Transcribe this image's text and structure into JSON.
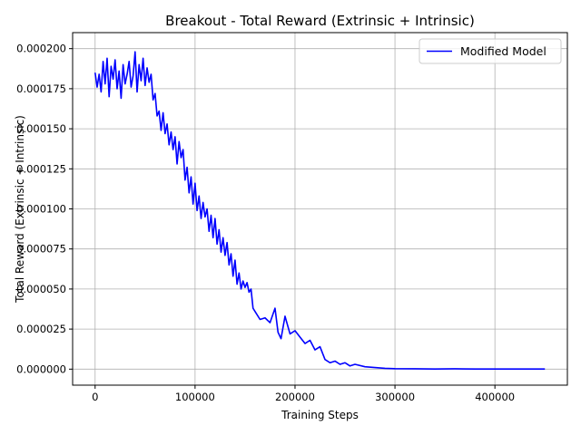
{
  "chart_data": {
    "type": "line",
    "title": "Breakout - Total Reward (Extrinsic + Intrinsic)",
    "xlabel": "Training Steps",
    "ylabel": "Total Reward (Extrinsic + Intrinsic)",
    "xlim": [
      -22500,
      472500
    ],
    "ylim": [
      -1e-05,
      0.00021
    ],
    "xticks": [
      0,
      100000,
      200000,
      300000,
      400000
    ],
    "xtick_labels": [
      "0",
      "100000",
      "200000",
      "300000",
      "400000"
    ],
    "yticks": [
      0.0,
      2.5e-05,
      5e-05,
      7.5e-05,
      0.0001,
      0.000125,
      0.00015,
      0.000175,
      0.0002
    ],
    "ytick_labels": [
      "0.000000",
      "0.000025",
      "0.000050",
      "0.000075",
      "0.000100",
      "0.000125",
      "0.000150",
      "0.000175",
      "0.000200"
    ],
    "grid": true,
    "legend_position": "top-right",
    "series": [
      {
        "name": "Modified Model",
        "color": "#0000ff",
        "x": [
          0,
          2000,
          4000,
          6000,
          8000,
          10000,
          12000,
          14000,
          16000,
          18000,
          20000,
          22000,
          24000,
          26000,
          28000,
          30000,
          32000,
          34000,
          36000,
          38000,
          40000,
          42000,
          44000,
          46000,
          48000,
          50000,
          52000,
          54000,
          56000,
          58000,
          60000,
          62000,
          64000,
          66000,
          68000,
          70000,
          72000,
          74000,
          76000,
          78000,
          80000,
          82000,
          84000,
          86000,
          88000,
          90000,
          92000,
          94000,
          96000,
          98000,
          100000,
          102000,
          104000,
          106000,
          108000,
          110000,
          112000,
          114000,
          116000,
          118000,
          120000,
          122000,
          124000,
          126000,
          128000,
          130000,
          132000,
          134000,
          136000,
          138000,
          140000,
          142000,
          144000,
          146000,
          148000,
          150000,
          152000,
          154000,
          156000,
          158000,
          160000,
          165000,
          170000,
          175000,
          180000,
          183000,
          186000,
          190000,
          195000,
          200000,
          205000,
          210000,
          215000,
          220000,
          225000,
          230000,
          235000,
          240000,
          245000,
          250000,
          255000,
          260000,
          270000,
          280000,
          290000,
          300000,
          320000,
          340000,
          360000,
          380000,
          400000,
          420000,
          450000
        ],
        "values": [
          0.000185,
          0.000176,
          0.000184,
          0.000173,
          0.000192,
          0.000178,
          0.000194,
          0.00017,
          0.000189,
          0.000181,
          0.000193,
          0.000175,
          0.000186,
          0.000169,
          0.00019,
          0.000178,
          0.000184,
          0.000192,
          0.000176,
          0.000183,
          0.000198,
          0.000173,
          0.00019,
          0.00018,
          0.000194,
          0.000177,
          0.000188,
          0.000179,
          0.000184,
          0.000168,
          0.000172,
          0.000158,
          0.000161,
          0.000149,
          0.00016,
          0.000147,
          0.000153,
          0.00014,
          0.000148,
          0.000137,
          0.000145,
          0.000128,
          0.000142,
          0.000132,
          0.000137,
          0.000118,
          0.000126,
          0.00011,
          0.00012,
          0.000103,
          0.000116,
          9.9e-05,
          0.000108,
          9.4e-05,
          0.000104,
          9.5e-05,
          0.0001,
          8.6e-05,
          9.6e-05,
          8.2e-05,
          9.4e-05,
          7.8e-05,
          8.7e-05,
          7.3e-05,
          8.2e-05,
          7.1e-05,
          7.9e-05,
          6.5e-05,
          7.2e-05,
          5.8e-05,
          6.8e-05,
          5.3e-05,
          6e-05,
          5e-05,
          5.5e-05,
          5.1e-05,
          5.4e-05,
          4.8e-05,
          5e-05,
          3.8e-05,
          3.6e-05,
          3.1e-05,
          3.2e-05,
          2.9e-05,
          3.8e-05,
          2.3e-05,
          1.9e-05,
          3.3e-05,
          2.2e-05,
          2.4e-05,
          2e-05,
          1.6e-05,
          1.8e-05,
          1.2e-05,
          1.4e-05,
          6e-06,
          4e-06,
          5e-06,
          3e-06,
          4e-06,
          2e-06,
          3e-06,
          1.5e-06,
          1e-06,
          5e-07,
          3e-07,
          2e-07,
          1e-07,
          2e-07,
          1e-07,
          1e-07,
          1e-07,
          1e-07
        ]
      }
    ]
  }
}
